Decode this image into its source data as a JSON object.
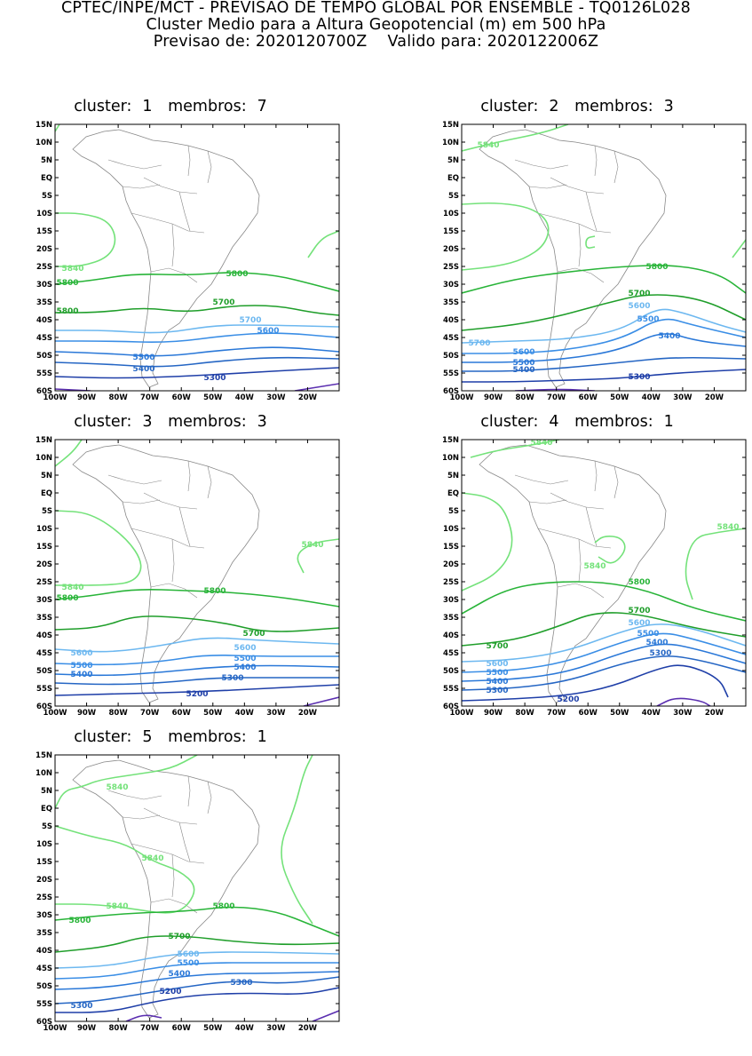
{
  "header": {
    "line1": "CPTEC/INPE/MCT - PREVISAO DE TEMPO GLOBAL POR ENSEMBLE - TQ0126L028",
    "line2": "Cluster Medio para a Altura Geopotencial (m) em 500 hPa",
    "line3_label_forecast": "Previsao de: 2020120700Z",
    "line3_label_valid": "Valido para: 2020122006Z"
  },
  "axis": {
    "lat_labels": [
      "15N",
      "10N",
      "5N",
      "EQ",
      "5S",
      "10S",
      "15S",
      "20S",
      "25S",
      "30S",
      "35S",
      "40S",
      "45S",
      "50S",
      "55S",
      "60S"
    ],
    "lon_labels": [
      "100W",
      "90W",
      "80W",
      "70W",
      "60W",
      "50W",
      "40W",
      "30W",
      "20W"
    ]
  },
  "colors": {
    "c5200": "#1f3fa8",
    "c5300": "#2566c4",
    "c5400": "#2a78d8",
    "c5500": "#3a8ee6",
    "c5600": "#6db8f0",
    "c5700": "#1f9e2a",
    "c5800": "#28b438",
    "c5840": "#74e27a",
    "c_low": "#5b2fb0",
    "coast": "#888888"
  },
  "panels": [
    {
      "cluster_label": "cluster:",
      "cluster_num": "1",
      "members_label": "membros:",
      "members_num": "7",
      "contour_labels": [
        "5840",
        "5800",
        "5800",
        "5800",
        "5700",
        "5700",
        "5600",
        "5500",
        "5400",
        "5300",
        "5200"
      ]
    },
    {
      "cluster_label": "cluster:",
      "cluster_num": "2",
      "members_label": "membros:",
      "members_num": "3",
      "contour_labels": [
        "5840",
        "5800",
        "5700",
        "5700",
        "5600",
        "5600",
        "5500",
        "5500",
        "5400",
        "5400",
        "5300",
        "5200"
      ]
    },
    {
      "cluster_label": "cluster:",
      "cluster_num": "3",
      "members_label": "membros:",
      "members_num": "3",
      "contour_labels": [
        "5840",
        "5840",
        "5800",
        "5800",
        "5700",
        "5600",
        "5600",
        "5500",
        "5500",
        "5400",
        "5400",
        "5300",
        "5200"
      ]
    },
    {
      "cluster_label": "cluster:",
      "cluster_num": "4",
      "members_label": "membros:",
      "members_num": "1",
      "contour_labels": [
        "5840",
        "5840",
        "5840",
        "5800",
        "5700",
        "5700",
        "5600",
        "5600",
        "5500",
        "5500",
        "5400",
        "5400",
        "5300",
        "5300",
        "5200"
      ]
    },
    {
      "cluster_label": "cluster:",
      "cluster_num": "5",
      "members_label": "membros:",
      "members_num": "1",
      "contour_labels": [
        "5840",
        "5840",
        "5840",
        "5800",
        "5800",
        "5700",
        "5600",
        "5500",
        "5400",
        "5300",
        "5300",
        "5200"
      ]
    }
  ]
}
